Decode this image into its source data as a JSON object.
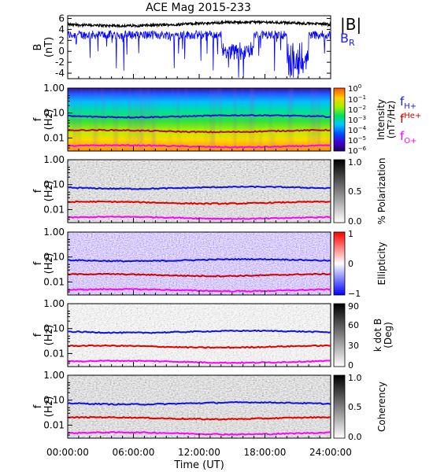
{
  "chart_data": [
    {
      "type": "line",
      "title": "ACE Mag 2015-233",
      "ylabel": "B\n(nT)",
      "ylim": [
        -5,
        6.5
      ],
      "yticks": [
        6,
        4,
        2,
        0,
        -2,
        -4
      ],
      "x_range_hours": [
        0,
        24
      ],
      "series": [
        {
          "name": "|B|",
          "color": "#000000",
          "mean": 5.0,
          "approx_range": [
            4.1,
            6.0
          ]
        },
        {
          "name": "B_R",
          "color": "#0000ff",
          "mean": 3.0,
          "approx_range": [
            -4.8,
            4.8
          ]
        }
      ]
    },
    {
      "type": "heatmap",
      "ylabel": "f\n(Hz)",
      "yscale": "log",
      "ylim": [
        0.003,
        1.0
      ],
      "yticks": [
        "1.00",
        "0.10",
        "0.01"
      ],
      "colorbar": {
        "label": "Intensity\n(nT²/Hz)",
        "scale": "log",
        "ticks": [
          "10⁰",
          "10⁻¹",
          "10⁻²",
          "10⁻³",
          "10⁻⁴",
          "10⁻⁵",
          "10⁻⁶"
        ]
      },
      "gyrofrequency_lines": [
        {
          "name": "fH+",
          "color": "#0000ff",
          "approx_hz": 0.075
        },
        {
          "name": "fHe+",
          "color": "#cc0000",
          "approx_hz": 0.019
        },
        {
          "name": "fO+",
          "color": "#ff00ff",
          "approx_hz": 0.0047
        }
      ]
    },
    {
      "type": "heatmap",
      "ylabel": "f\n(Hz)",
      "yscale": "log",
      "ylim": [
        0.003,
        1.0
      ],
      "yticks": [
        "1.00",
        "0.10",
        "0.01"
      ],
      "colorbar": {
        "label": "% Polarization",
        "ticks": [
          "1.0",
          "0.5",
          "0.0"
        ],
        "range": [
          0,
          1
        ]
      }
    },
    {
      "type": "heatmap",
      "ylabel": "f\n(Hz)",
      "yscale": "log",
      "ylim": [
        0.003,
        1.0
      ],
      "yticks": [
        "1.00",
        "0.10",
        "0.01"
      ],
      "colorbar": {
        "label": "Ellipticity",
        "ticks": [
          "1",
          "0",
          "−1"
        ],
        "range": [
          -1,
          1
        ]
      }
    },
    {
      "type": "heatmap",
      "ylabel": "f\n(Hz)",
      "yscale": "log",
      "ylim": [
        0.003,
        1.0
      ],
      "yticks": [
        "1.00",
        "0.10",
        "0.01"
      ],
      "colorbar": {
        "label": "k dot B\n(Deg)",
        "ticks": [
          "90",
          "60",
          "30",
          "0"
        ],
        "range": [
          0,
          90
        ]
      }
    },
    {
      "type": "heatmap",
      "ylabel": "f\n(Hz)",
      "yscale": "log",
      "ylim": [
        0.003,
        1.0
      ],
      "yticks": [
        "1.00",
        "0.10",
        "0.01"
      ],
      "colorbar": {
        "label": "Coherency",
        "ticks": [
          "1.0",
          "0.5",
          "0.0"
        ],
        "range": [
          0,
          1
        ]
      },
      "xlabel": "Time (UT)",
      "xticks": [
        "00:00:00",
        "06:00:00",
        "12:00:00",
        "18:00:00",
        "24:00:00"
      ]
    }
  ],
  "labels": {
    "title": "ACE Mag 2015-233",
    "b_axis_label": "B",
    "b_unit_label": "(nT)",
    "f_label": "f",
    "hz_label": "(Hz)",
    "legend_b": "|B|",
    "legend_br": "B",
    "legend_br_sub": "R",
    "xaxis": "Time (UT)",
    "intensity_label": "Intensity",
    "intensity_unit": "(nT²/Hz)",
    "pol_label": "% Polarization",
    "ell_label": "Ellipticity",
    "kdotb_label": "k dot B",
    "kdotb_unit": "(Deg)",
    "coh_label": "Coherency",
    "fh": "f",
    "fh_sub": "H+",
    "fhe": "f",
    "fhe_sub": "He+",
    "fo": "f",
    "fo_sub": "O+"
  }
}
